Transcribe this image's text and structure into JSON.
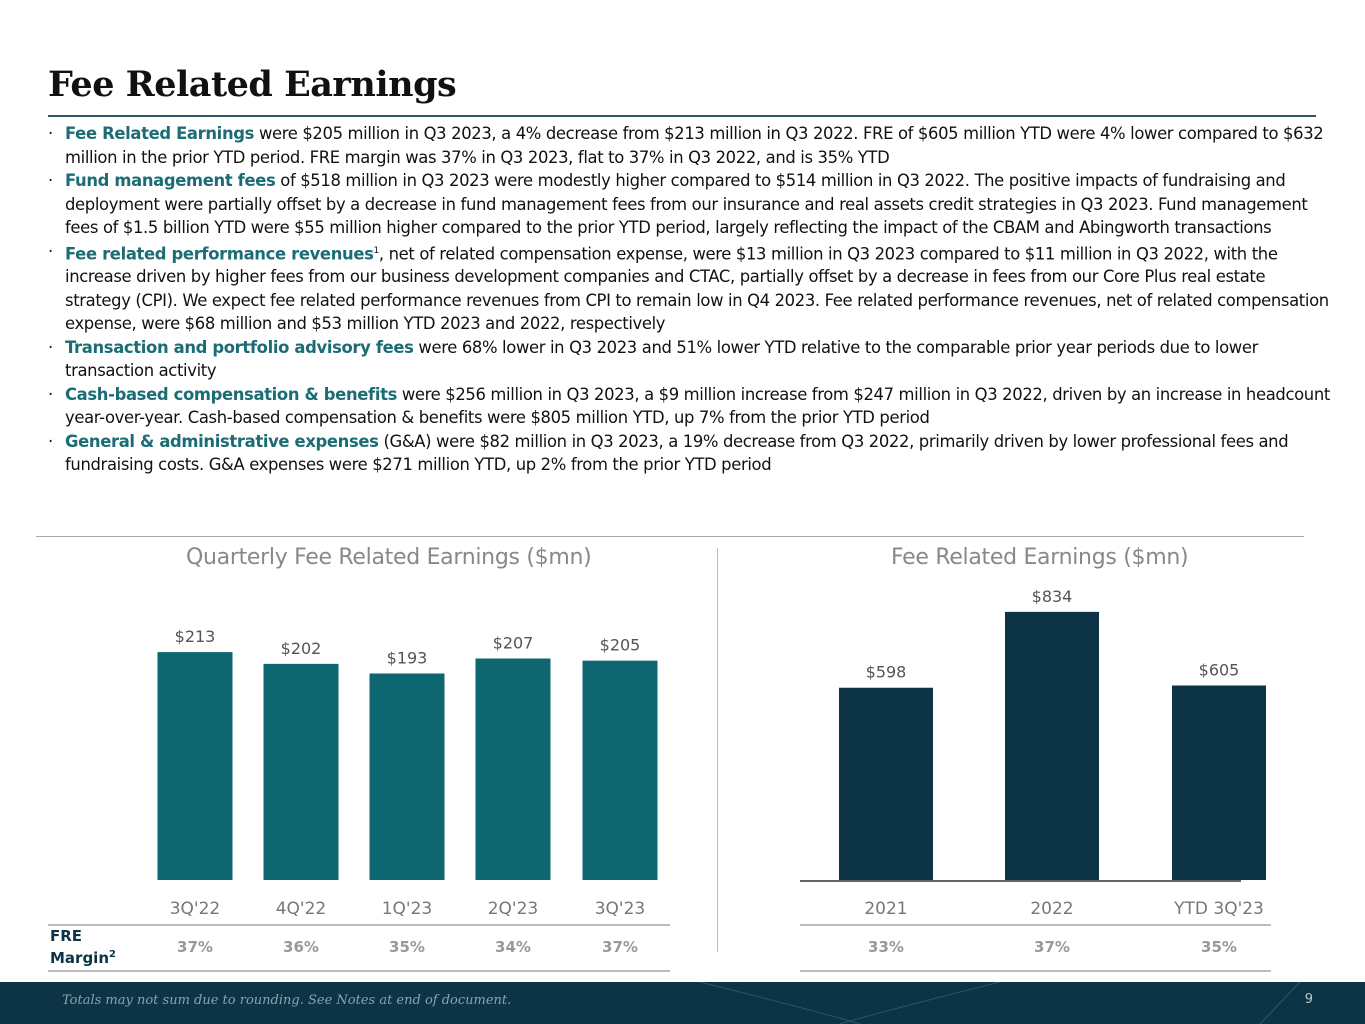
{
  "title": "Fee Related Earnings",
  "bullets": [
    {
      "head": "Fee Related Earnings",
      "text": " were $205 million in Q3 2023, a 4% decrease from $213 million in Q3 2022. FRE of $605 million YTD were 4% lower compared to $632 million in the prior YTD period. FRE margin was 37% in Q3 2023, flat to 37% in Q3 2022, and is 35% YTD"
    },
    {
      "head": "Fund management fees",
      "text": " of $518 million in Q3 2023 were modestly higher compared to $514 million in Q3 2022. The positive impacts of fundraising and deployment were partially offset by a decrease in fund management fees from our insurance and real assets credit strategies in Q3 2023. Fund management fees of $1.5 billion YTD were $55 million higher compared to the prior YTD period, largely reflecting the impact of the CBAM and Abingworth transactions"
    },
    {
      "head": "Fee related performance revenues",
      "sup": "1",
      "text": ", net of related compensation expense, were $13 million in Q3 2023 compared to $11 million in Q3 2022, with the increase driven by higher fees from our business development companies and CTAC, partially offset by a decrease in fees from our Core Plus real estate strategy (CPI).  We expect fee related performance revenues from CPI to remain low in Q4 2023. Fee related performance revenues, net of related compensation expense, were $68 million and $53 million YTD 2023 and 2022, respectively"
    },
    {
      "head": "Transaction and portfolio advisory fees",
      "text": " were 68% lower in Q3 2023 and 51% lower YTD relative to the comparable prior year periods due to lower transaction activity"
    },
    {
      "head": "Cash-based compensation & benefits",
      "text": " were $256 million in Q3 2023, a $9 million increase from $247 million in Q3 2022, driven by an increase in headcount year-over-year. Cash-based compensation & benefits were $805 million YTD, up 7% from the prior YTD period"
    },
    {
      "head": "General & administrative expenses",
      "text": " (G&A) were $82 million in Q3 2023, a 19% decrease from Q3 2022, primarily driven by lower professional fees and fundraising costs. G&A expenses were $271 million YTD, up 2% from the prior YTD period"
    }
  ],
  "margin_label": "FRE Margin",
  "margin_sup": "2",
  "chart_data": [
    {
      "type": "bar",
      "title": "Quarterly Fee Related Earnings ($mn)",
      "categories": [
        "3Q'22",
        "4Q'22",
        "1Q'23",
        "2Q'23",
        "3Q'23"
      ],
      "values": [
        213,
        202,
        193,
        207,
        205
      ],
      "data_labels": [
        "$213",
        "$202",
        "$193",
        "$207",
        "$205"
      ],
      "margins": [
        "37%",
        "36%",
        "35%",
        "34%",
        "37%"
      ],
      "color": "#0e6670"
    },
    {
      "type": "bar",
      "title": "Fee Related Earnings ($mn)",
      "categories": [
        "2021",
        "2022",
        "YTD 3Q'23"
      ],
      "values": [
        598,
        834,
        605
      ],
      "data_labels": [
        "$598",
        "$834",
        "$605"
      ],
      "margins": [
        "33%",
        "37%",
        "35%"
      ],
      "color": "#0c3446"
    }
  ],
  "footer": {
    "note": "Totals may not sum due to rounding. See Notes at end of document.",
    "page": "9"
  }
}
